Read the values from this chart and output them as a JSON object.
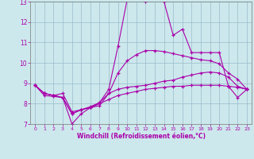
{
  "xlabel": "Windchill (Refroidissement éolien,°C)",
  "xlim": [
    -0.5,
    23.5
  ],
  "ylim": [
    7,
    13
  ],
  "yticks": [
    7,
    8,
    9,
    10,
    11,
    12,
    13
  ],
  "xticks": [
    0,
    1,
    2,
    3,
    4,
    5,
    6,
    7,
    8,
    9,
    10,
    11,
    12,
    13,
    14,
    15,
    16,
    17,
    18,
    19,
    20,
    21,
    22,
    23
  ],
  "bg_color": "#cce8ec",
  "line_color": "#aa00aa",
  "grid_color": "#99bbcc",
  "line1": [
    8.9,
    8.5,
    8.4,
    8.5,
    7.6,
    7.7,
    7.8,
    7.9,
    8.5,
    8.7,
    8.8,
    8.85,
    8.9,
    9.0,
    9.1,
    9.15,
    9.3,
    9.4,
    9.5,
    9.55,
    9.5,
    9.3,
    8.85,
    8.7
  ],
  "line2": [
    8.9,
    8.5,
    8.4,
    8.3,
    7.0,
    7.5,
    7.8,
    8.05,
    8.7,
    10.8,
    13.1,
    13.25,
    13.0,
    13.2,
    13.0,
    11.35,
    11.65,
    10.5,
    10.5,
    10.5,
    10.5,
    8.85,
    8.3,
    8.7
  ],
  "line3": [
    8.9,
    8.5,
    8.4,
    8.3,
    7.5,
    7.7,
    7.85,
    8.05,
    8.5,
    9.5,
    10.1,
    10.4,
    10.6,
    10.6,
    10.55,
    10.45,
    10.35,
    10.25,
    10.15,
    10.1,
    9.95,
    9.5,
    9.2,
    8.7
  ],
  "line4": [
    8.9,
    8.4,
    8.35,
    8.3,
    7.5,
    7.7,
    7.8,
    8.0,
    8.2,
    8.4,
    8.5,
    8.6,
    8.7,
    8.75,
    8.8,
    8.85,
    8.85,
    8.9,
    8.9,
    8.9,
    8.9,
    8.85,
    8.8,
    8.7
  ]
}
